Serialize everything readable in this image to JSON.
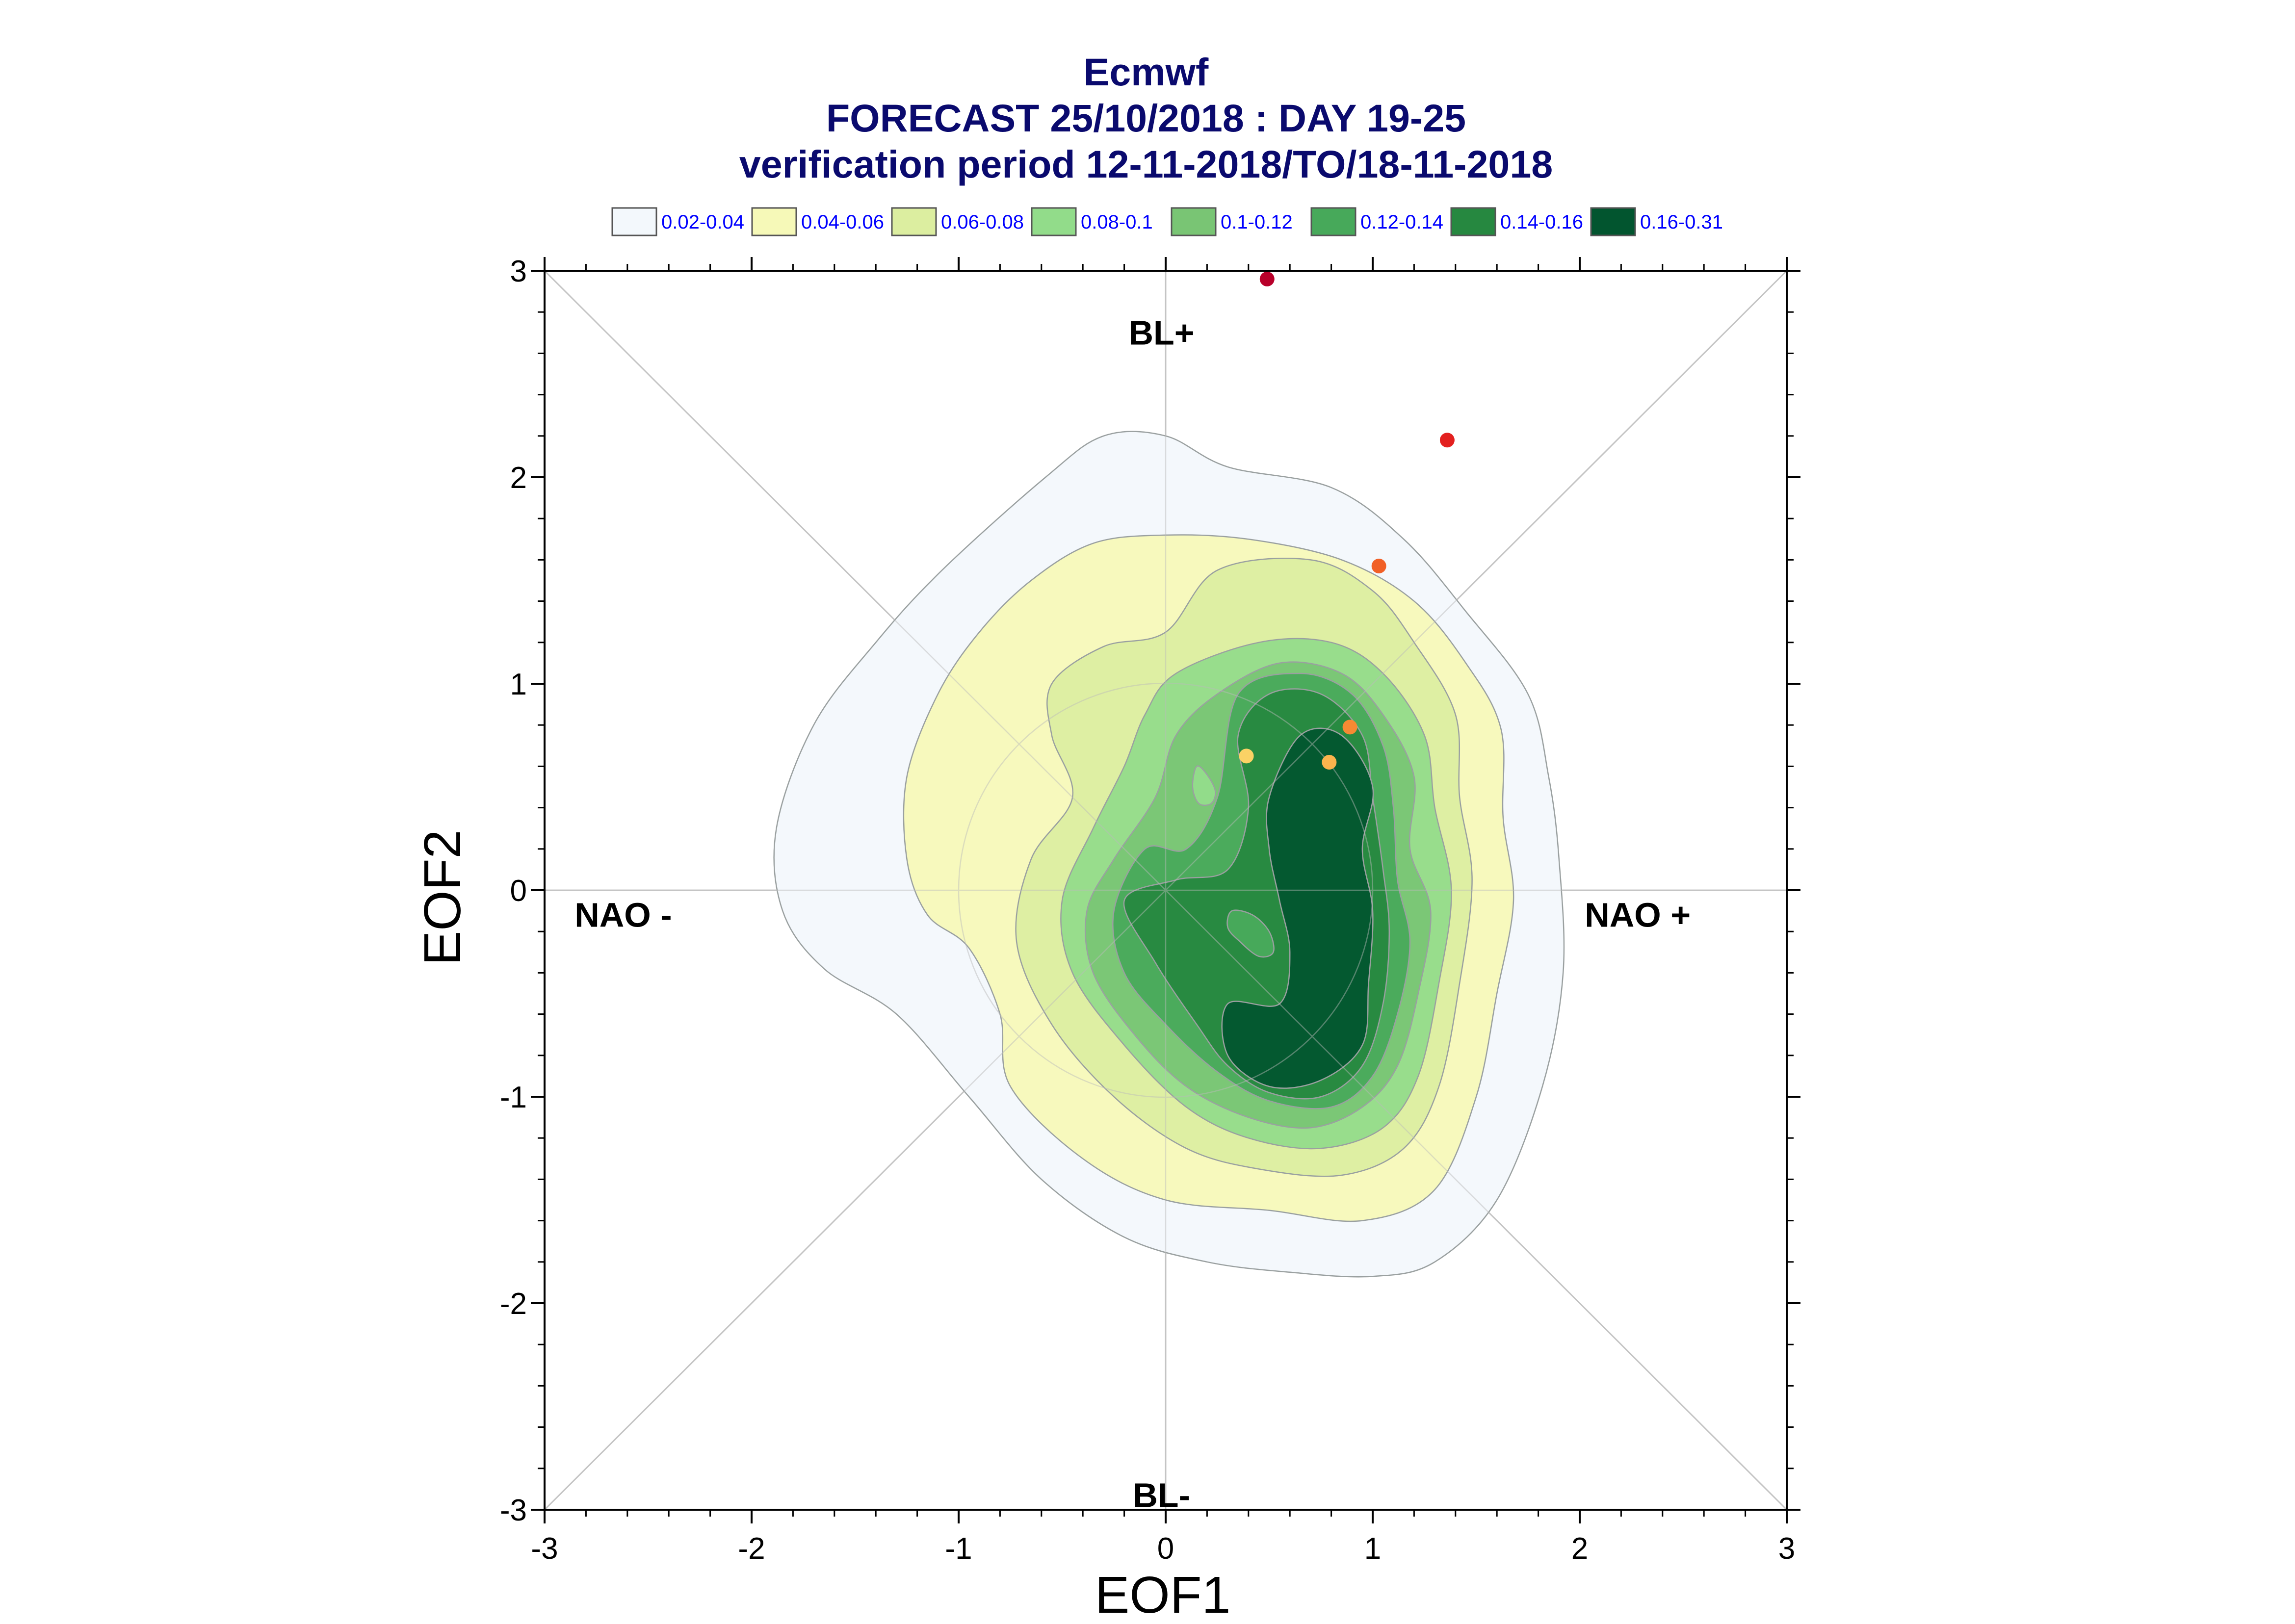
{
  "chart_data": {
    "type": "contour-scatter",
    "title": [
      "Ecmwf",
      "FORECAST 25/10/2018 : DAY 19-25",
      "verification period 12-11-2018/TO/18-11-2018"
    ],
    "xlabel": "EOF1",
    "ylabel": "EOF2",
    "xlim": [
      -3,
      3
    ],
    "ylim": [
      -3,
      3
    ],
    "xticks": [
      -3,
      -2,
      -1,
      0,
      1,
      2,
      3
    ],
    "yticks": [
      -3,
      -2,
      -1,
      0,
      1,
      2,
      3
    ],
    "grid": false,
    "legend_position": "top",
    "regime_labels": [
      {
        "text": "BL+",
        "x": -0.02,
        "y": 2.7
      },
      {
        "text": "BL-",
        "x": -0.02,
        "y": -2.93
      },
      {
        "text": "NAO -",
        "x": -2.62,
        "y": -0.12
      },
      {
        "text": "NAO +",
        "x": 2.28,
        "y": -0.12
      }
    ],
    "density_bins": [
      {
        "label": "0.02-0.04",
        "color": "#f3f8fc"
      },
      {
        "label": "0.04-0.06",
        "color": "#f6f9b8"
      },
      {
        "label": "0.06-0.08",
        "color": "#dceea0"
      },
      {
        "label": "0.08-0.1",
        "color": "#92dc8a"
      },
      {
        "label": "0.1-0.12",
        "color": "#79c574"
      },
      {
        "label": "0.12-0.14",
        "color": "#47a95a"
      },
      {
        "label": "0.14-0.16",
        "color": "#268840"
      },
      {
        "label": "0.16-0.31",
        "color": "#02552f"
      }
    ],
    "contours": [
      {
        "level": "0.02-0.04",
        "points": [
          [
            -0.58,
            2.0
          ],
          [
            -0.3,
            2.2
          ],
          [
            0.0,
            2.2
          ],
          [
            0.3,
            2.05
          ],
          [
            0.8,
            1.95
          ],
          [
            1.15,
            1.7
          ],
          [
            1.45,
            1.35
          ],
          [
            1.75,
            0.95
          ],
          [
            1.85,
            0.55
          ],
          [
            1.9,
            0.15
          ],
          [
            1.92,
            -0.4
          ],
          [
            1.82,
            -0.95
          ],
          [
            1.6,
            -1.5
          ],
          [
            1.3,
            -1.8
          ],
          [
            1.0,
            -1.87
          ],
          [
            0.6,
            -1.85
          ],
          [
            0.2,
            -1.8
          ],
          [
            -0.2,
            -1.68
          ],
          [
            -0.6,
            -1.4
          ],
          [
            -0.95,
            -1.0
          ],
          [
            -1.3,
            -0.6
          ],
          [
            -1.65,
            -0.38
          ],
          [
            -1.85,
            -0.1
          ],
          [
            -1.88,
            0.3
          ],
          [
            -1.7,
            0.8
          ],
          [
            -1.4,
            1.2
          ],
          [
            -1.08,
            1.55
          ]
        ]
      },
      {
        "level": "0.04-0.06",
        "points": [
          [
            -0.35,
            1.68
          ],
          [
            0.0,
            1.72
          ],
          [
            0.4,
            1.7
          ],
          [
            0.85,
            1.6
          ],
          [
            1.2,
            1.4
          ],
          [
            1.45,
            1.1
          ],
          [
            1.62,
            0.78
          ],
          [
            1.63,
            0.35
          ],
          [
            1.68,
            -0.05
          ],
          [
            1.6,
            -0.5
          ],
          [
            1.5,
            -1.0
          ],
          [
            1.3,
            -1.45
          ],
          [
            0.95,
            -1.6
          ],
          [
            0.5,
            -1.55
          ],
          [
            0.0,
            -1.5
          ],
          [
            -0.4,
            -1.3
          ],
          [
            -0.75,
            -0.95
          ],
          [
            -0.8,
            -0.6
          ],
          [
            -0.95,
            -0.28
          ],
          [
            -1.15,
            -0.12
          ],
          [
            -1.25,
            0.15
          ],
          [
            -1.25,
            0.55
          ],
          [
            -1.1,
            0.95
          ],
          [
            -0.9,
            1.25
          ],
          [
            -0.65,
            1.5
          ]
        ]
      },
      {
        "level": "0.06-0.08",
        "points": [
          [
            -0.55,
            1.0
          ],
          [
            -0.3,
            1.18
          ],
          [
            0.0,
            1.25
          ],
          [
            0.25,
            1.55
          ],
          [
            0.7,
            1.6
          ],
          [
            1.0,
            1.45
          ],
          [
            1.2,
            1.2
          ],
          [
            1.4,
            0.85
          ],
          [
            1.42,
            0.45
          ],
          [
            1.48,
            0.05
          ],
          [
            1.42,
            -0.45
          ],
          [
            1.32,
            -0.95
          ],
          [
            1.15,
            -1.25
          ],
          [
            0.85,
            -1.38
          ],
          [
            0.45,
            -1.35
          ],
          [
            0.1,
            -1.25
          ],
          [
            -0.25,
            -1.0
          ],
          [
            -0.55,
            -0.65
          ],
          [
            -0.72,
            -0.25
          ],
          [
            -0.65,
            0.15
          ],
          [
            -0.45,
            0.45
          ],
          [
            -0.55,
            0.75
          ]
        ]
      },
      {
        "level": "0.08-0.1",
        "points": [
          [
            0.05,
            1.05
          ],
          [
            0.45,
            1.2
          ],
          [
            0.8,
            1.2
          ],
          [
            1.05,
            1.05
          ],
          [
            1.25,
            0.75
          ],
          [
            1.3,
            0.4
          ],
          [
            1.38,
            0.0
          ],
          [
            1.32,
            -0.45
          ],
          [
            1.22,
            -0.9
          ],
          [
            1.05,
            -1.15
          ],
          [
            0.75,
            -1.25
          ],
          [
            0.4,
            -1.2
          ],
          [
            0.1,
            -1.05
          ],
          [
            -0.2,
            -0.75
          ],
          [
            -0.45,
            -0.4
          ],
          [
            -0.5,
            -0.05
          ],
          [
            -0.35,
            0.3
          ],
          [
            -0.2,
            0.6
          ],
          [
            -0.1,
            0.85
          ]
        ]
      },
      {
        "level": "0.1-0.12",
        "points": [
          [
            0.25,
            0.95
          ],
          [
            0.55,
            1.1
          ],
          [
            0.85,
            1.05
          ],
          [
            1.05,
            0.85
          ],
          [
            1.2,
            0.55
          ],
          [
            1.18,
            0.2
          ],
          [
            1.28,
            -0.1
          ],
          [
            1.22,
            -0.5
          ],
          [
            1.12,
            -0.85
          ],
          [
            0.95,
            -1.05
          ],
          [
            0.7,
            -1.15
          ],
          [
            0.4,
            -1.1
          ],
          [
            0.1,
            -0.95
          ],
          [
            -0.15,
            -0.7
          ],
          [
            -0.35,
            -0.4
          ],
          [
            -0.38,
            -0.1
          ],
          [
            -0.25,
            0.15
          ],
          [
            -0.05,
            0.45
          ],
          [
            0.05,
            0.75
          ]
        ]
      },
      {
        "level": "0.12-0.14",
        "points": [
          [
            0.35,
            0.95
          ],
          [
            0.65,
            1.05
          ],
          [
            0.9,
            0.95
          ],
          [
            1.05,
            0.7
          ],
          [
            1.1,
            0.4
          ],
          [
            1.12,
            0.05
          ],
          [
            1.18,
            -0.25
          ],
          [
            1.12,
            -0.6
          ],
          [
            1.0,
            -0.9
          ],
          [
            0.8,
            -1.05
          ],
          [
            0.5,
            -1.02
          ],
          [
            0.25,
            -0.88
          ],
          [
            0.0,
            -0.65
          ],
          [
            -0.2,
            -0.4
          ],
          [
            -0.25,
            -0.1
          ],
          [
            -0.1,
            0.2
          ],
          [
            0.1,
            0.2
          ],
          [
            0.25,
            0.45
          ]
        ]
      },
      {
        "level": "0.14-0.16",
        "points": [
          [
            0.5,
            0.95
          ],
          [
            0.75,
            0.95
          ],
          [
            0.95,
            0.75
          ],
          [
            1.0,
            0.45
          ],
          [
            1.05,
            0.1
          ],
          [
            1.08,
            -0.2
          ],
          [
            1.05,
            -0.55
          ],
          [
            0.95,
            -0.85
          ],
          [
            0.75,
            -1.0
          ],
          [
            0.5,
            -0.98
          ],
          [
            0.3,
            -0.85
          ],
          [
            0.15,
            -0.65
          ],
          [
            -0.05,
            -0.35
          ],
          [
            -0.2,
            -0.05
          ],
          [
            0.05,
            0.05
          ],
          [
            0.3,
            0.1
          ],
          [
            0.4,
            0.4
          ],
          [
            0.35,
            0.75
          ]
        ]
      },
      {
        "level": "0.16-0.31",
        "points": [
          [
            0.65,
            0.75
          ],
          [
            0.85,
            0.75
          ],
          [
            1.0,
            0.5
          ],
          [
            0.95,
            0.2
          ],
          [
            1.0,
            -0.1
          ],
          [
            0.98,
            -0.45
          ],
          [
            0.95,
            -0.75
          ],
          [
            0.75,
            -0.92
          ],
          [
            0.5,
            -0.95
          ],
          [
            0.3,
            -0.8
          ],
          [
            0.3,
            -0.55
          ],
          [
            0.55,
            -0.55
          ],
          [
            0.6,
            -0.3
          ],
          [
            0.55,
            -0.05
          ],
          [
            0.5,
            0.2
          ],
          [
            0.5,
            0.45
          ]
        ]
      }
    ],
    "inner_islands": [
      {
        "level": "0.08-0.1",
        "points": [
          [
            0.15,
            0.6
          ],
          [
            0.2,
            0.56
          ],
          [
            0.24,
            0.48
          ],
          [
            0.22,
            0.42
          ],
          [
            0.16,
            0.42
          ],
          [
            0.13,
            0.5
          ]
        ]
      },
      {
        "level": "0.12-0.14",
        "points": [
          [
            0.32,
            -0.1
          ],
          [
            0.42,
            -0.12
          ],
          [
            0.5,
            -0.2
          ],
          [
            0.52,
            -0.3
          ],
          [
            0.45,
            -0.32
          ],
          [
            0.36,
            -0.25
          ],
          [
            0.3,
            -0.18
          ]
        ]
      }
    ],
    "points": [
      {
        "x": 0.49,
        "y": 2.96,
        "color": "#b8002a"
      },
      {
        "x": 1.36,
        "y": 2.18,
        "color": "#e3201f"
      },
      {
        "x": 1.03,
        "y": 1.57,
        "color": "#f16026"
      },
      {
        "x": 0.89,
        "y": 0.79,
        "color": "#f68a33"
      },
      {
        "x": 0.79,
        "y": 0.62,
        "color": "#fbb44d"
      },
      {
        "x": 0.39,
        "y": 0.65,
        "color": "#fbd265"
      }
    ]
  }
}
